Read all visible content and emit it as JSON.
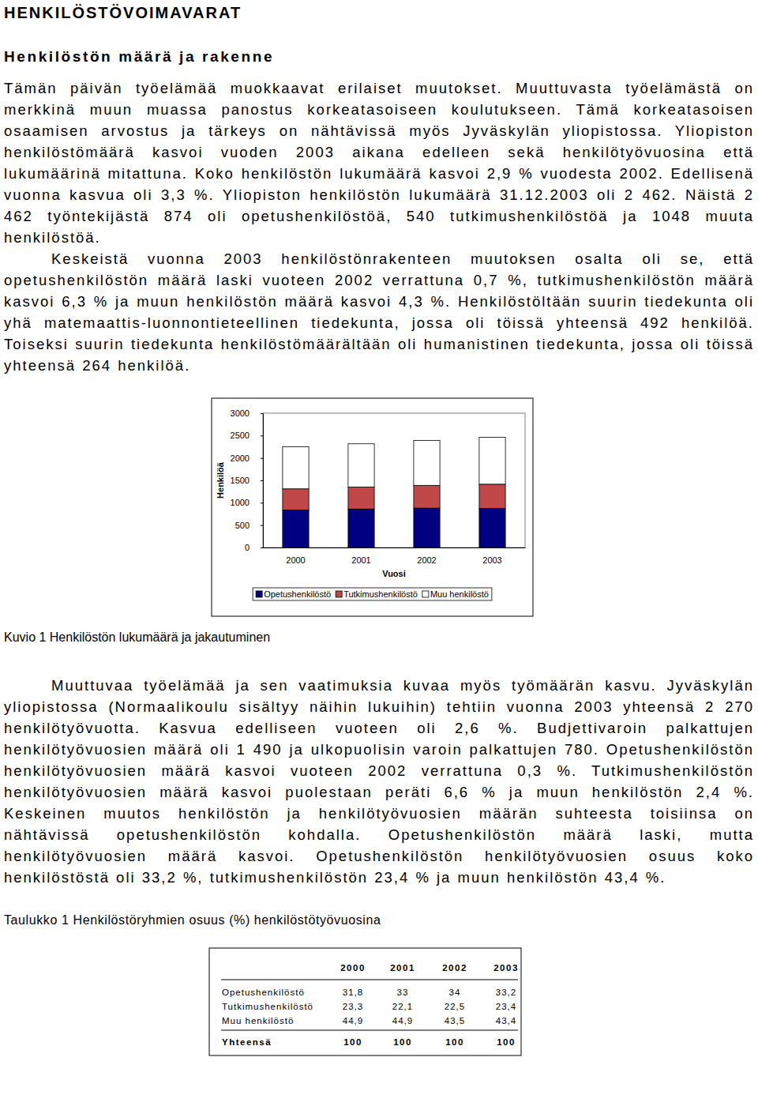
{
  "heading": "HENKILÖSTÖVOIMAVARAT",
  "subheading": "Henkilöstön määrä ja rakenne",
  "paragraphs": [
    "Tämän päivän työelämää muokkaavat erilaiset muutokset. Muuttuvasta työelämästä on merkkinä muun muassa panostus korkeatasoiseen koulutukseen. Tämä korkeatasoisen osaamisen arvostus ja tärkeys on nähtävissä myös Jyväskylän yliopistossa. Yliopiston henkilöstömäärä kasvoi vuoden 2003 aikana edelleen sekä henkilötyövuosina että lukumäärinä mitattuna. Koko henkilöstön lukumäärä kasvoi 2,9 % vuodesta 2002. Edellisenä vuonna kasvua oli 3,3 %. Yliopiston henkilöstön lukumäärä 31.12.2003 oli 2 462. Näistä 2 462 työntekijästä 874 oli opetushenkilöstöä, 540 tutkimushenkilöstöä ja 1048 muuta henkilöstöä.",
    "Keskeistä vuonna 2003 henkilöstönrakenteen muutoksen osalta oli se, että opetushenkilöstön määrä laski vuoteen 2002 verrattuna 0,7 %, tutkimushenkilöstön määrä kasvoi 6,3 % ja muun henkilöstön määrä kasvoi 4,3 %. Henkilöstöltään suurin tiedekunta oli yhä matemaattis-luonnontieteellinen tiedekunta, jossa oli töissä yhteensä 492 henkilöä. Toiseksi suurin tiedekunta henkilöstömäärältään oli humanistinen tiedekunta, jossa oli töissä yhteensä 264 henkilöä."
  ],
  "chart_data": {
    "type": "bar",
    "stacked": true,
    "grid": false,
    "legend": "bottom",
    "x_label": "Vuosi",
    "y_label": "Henkilöä",
    "categories": [
      "2000",
      "2001",
      "2002",
      "2003"
    ],
    "ylim": [
      0,
      3000
    ],
    "yticks": [
      0,
      500,
      1000,
      1500,
      2000,
      2500,
      3000
    ],
    "series": [
      {
        "name": "Opetushenkilöstö",
        "color": "#000080",
        "values": [
          840,
          860,
          880,
          874
        ]
      },
      {
        "name": "Tutkimushenkilöstö",
        "color": "#c04848",
        "values": [
          470,
          490,
          508,
          540
        ]
      },
      {
        "name": "Muu henkilöstö",
        "color": "#ffffff",
        "values": [
          940,
          966,
          1005,
          1048
        ]
      }
    ]
  },
  "figure_caption": "Kuvio 1 Henkilöstön lukumäärä ja jakautuminen",
  "paragraphs_after": [
    "Muuttuvaa työelämää ja sen vaatimuksia kuvaa myös työmäärän kasvu. Jyväskylän yliopistossa (Normaalikoulu sisältyy näihin lukuihin) tehtiin vuonna 2003 yhteensä 2 270 henkilötyövuotta. Kasvua edelliseen vuoteen oli 2,6 %. Budjettivaroin palkattujen henkilötyövuosien määrä oli 1 490 ja ulkopuolisin varoin palkattujen 780. Opetushenkilöstön henkilötyövuosien määrä kasvoi vuoteen 2002 verrattuna 0,3 %. Tutkimushenkilöstön henkilötyövuosien määrä kasvoi puolestaan peräti 6,6 % ja muun henkilöstön 2,4 %. Keskeinen muutos henkilöstön ja henkilötyövuosien määrän suhteesta toisiinsa on nähtävissä opetushenkilöstön kohdalla. Opetushenkilöstön määrä laski, mutta henkilötyövuosien määrä kasvoi. Opetushenkilöstön henkilötyövuosien osuus koko henkilöstöstä oli 33,2 %, tutkimushenkilöstön 23,4 % ja muun henkilöstön 43,4 %."
  ],
  "table_caption": "Taulukko 1 Henkilöstöryhmien osuus (%) henkilöstötyövuosina",
  "table": {
    "columns": [
      "2000",
      "2001",
      "2002",
      "2003"
    ],
    "rows": [
      {
        "label": "Opetushenkilöstö",
        "values": [
          "31,8",
          "33",
          "34",
          "33,2"
        ]
      },
      {
        "label": "Tutkimushenkilöstö",
        "values": [
          "23,3",
          "22,1",
          "22,5",
          "23,4"
        ]
      },
      {
        "label": "Muu henkilöstö",
        "values": [
          "44,9",
          "44,9",
          "43,5",
          "43,4"
        ]
      }
    ],
    "total": {
      "label": "Yhteensä",
      "values": [
        "100",
        "100",
        "100",
        "100"
      ]
    }
  }
}
